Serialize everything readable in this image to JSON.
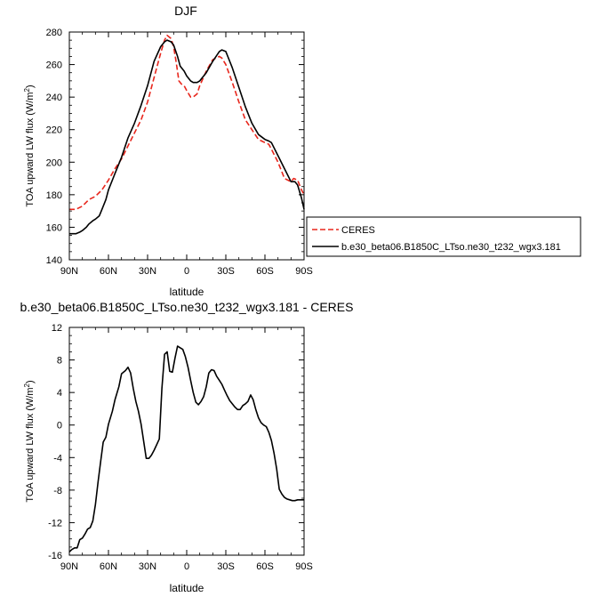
{
  "chart_data": [
    {
      "type": "line",
      "title": "DJF",
      "xlabel": "latitude",
      "ylabel": "TOA upward LW flux (W/m",
      "ylabel_sup": "2",
      "ylabel_close": ")",
      "xlim": [
        90,
        -90
      ],
      "ylim": [
        140,
        280
      ],
      "x_ticks": [
        90,
        60,
        30,
        0,
        -30,
        -60,
        -90
      ],
      "x_tick_labels": [
        "90N",
        "60N",
        "30N",
        "0",
        "30S",
        "60S",
        "90S"
      ],
      "y_ticks": [
        140,
        160,
        180,
        200,
        220,
        240,
        260,
        280
      ],
      "y_tick_labels": [
        "140",
        "160",
        "180",
        "200",
        "220",
        "240",
        "260",
        "280"
      ],
      "legend_placement": "right",
      "series": [
        {
          "name": "CERES",
          "color": "#e8261c",
          "dash": "dashed",
          "x": [
            90,
            85,
            80,
            75,
            70,
            65,
            60,
            55,
            50,
            45,
            40,
            35,
            30,
            25,
            20,
            17,
            15,
            12,
            10,
            8,
            6,
            4,
            2,
            0,
            -3,
            -5,
            -8,
            -10,
            -15,
            -20,
            -25,
            -27,
            -30,
            -35,
            -40,
            -45,
            -50,
            -55,
            -60,
            -63,
            -65,
            -70,
            -75,
            -80,
            -82,
            -85,
            -88,
            -90
          ],
          "y": [
            171,
            171,
            173,
            177,
            179,
            183,
            189,
            196,
            202,
            210,
            218,
            226,
            237,
            252,
            267,
            275,
            278,
            276,
            271,
            261,
            250,
            248,
            247,
            244,
            240,
            240,
            242,
            247,
            256,
            263,
            265,
            264,
            260,
            249,
            237,
            226,
            220,
            214,
            212,
            211,
            208,
            200,
            190,
            188,
            190,
            189,
            183,
            180
          ]
        },
        {
          "name": "b.e30_beta06.B1850C_LTso.ne30_t232_wgx3.181",
          "color": "#000000",
          "dash": "solid",
          "x": [
            90,
            87,
            85,
            82,
            80,
            77,
            75,
            72,
            70,
            67,
            65,
            62,
            60,
            55,
            50,
            45,
            40,
            35,
            30,
            25,
            20,
            17,
            15,
            12,
            10,
            7,
            5,
            2,
            0,
            -3,
            -5,
            -8,
            -10,
            -15,
            -20,
            -25,
            -27,
            -30,
            -35,
            -40,
            -45,
            -50,
            -55,
            -60,
            -63,
            -65,
            -70,
            -75,
            -80,
            -83,
            -85,
            -88,
            -90
          ],
          "y": [
            156,
            156,
            156,
            157,
            158,
            160,
            162,
            164,
            165,
            167,
            171,
            177,
            183,
            193,
            203,
            215,
            224,
            235,
            247,
            262,
            271,
            274,
            275,
            274,
            272,
            265,
            259,
            256,
            253,
            250,
            249,
            249,
            250,
            255,
            262,
            268,
            269,
            268,
            258,
            246,
            234,
            224,
            217,
            214,
            213,
            212,
            204,
            196,
            188,
            188,
            186,
            178,
            171
          ]
        }
      ]
    },
    {
      "type": "line",
      "title": "b.e30_beta06.B1850C_LTso.ne30_t232_wgx3.181 - CERES",
      "xlabel": "latitude",
      "ylabel": "TOA upward LW flux (W/m",
      "ylabel_sup": "2",
      "ylabel_close": ")",
      "xlim": [
        90,
        -90
      ],
      "ylim": [
        -16,
        12
      ],
      "x_ticks": [
        90,
        60,
        30,
        0,
        -30,
        -60,
        -90
      ],
      "x_tick_labels": [
        "90N",
        "60N",
        "30N",
        "0",
        "30S",
        "60S",
        "90S"
      ],
      "y_ticks": [
        -16,
        -12,
        -8,
        -4,
        0,
        4,
        8,
        12
      ],
      "y_tick_labels": [
        "-16",
        "-12",
        "-8",
        "-4",
        "0",
        "4",
        "8",
        "12"
      ],
      "series": [
        {
          "color": "#000000",
          "dash": "solid",
          "x": [
            90,
            88,
            86,
            84,
            82,
            80,
            78,
            76,
            74,
            72,
            70,
            68,
            66,
            64,
            62,
            60,
            57,
            55,
            52,
            50,
            47,
            45,
            43,
            41,
            39,
            37,
            35,
            33,
            31,
            29,
            27,
            25,
            23,
            21,
            19,
            17,
            15,
            13,
            11,
            9,
            7,
            5,
            3,
            1,
            -1,
            -3,
            -5,
            -7,
            -9,
            -11,
            -13,
            -15,
            -17,
            -19,
            -21,
            -23,
            -25,
            -27,
            -29,
            -31,
            -33,
            -35,
            -37,
            -39,
            -41,
            -43,
            -45,
            -47,
            -49,
            -51,
            -53,
            -55,
            -57,
            -59,
            -61,
            -63,
            -65,
            -67,
            -69,
            -71,
            -73,
            -75,
            -77,
            -79,
            -81,
            -83,
            -85,
            -87,
            -89,
            -90
          ],
          "y": [
            -15.6,
            -15.3,
            -15.1,
            -15.1,
            -14.1,
            -13.9,
            -13.4,
            -12.8,
            -12.6,
            -11.8,
            -9.8,
            -7.0,
            -4.5,
            -2.1,
            -1.5,
            0.1,
            1.7,
            3.1,
            4.7,
            6.3,
            6.7,
            7.1,
            6.4,
            4.5,
            2.9,
            1.7,
            0.1,
            -2.0,
            -4.1,
            -4.1,
            -3.7,
            -3.1,
            -2.4,
            -1.7,
            4.5,
            8.7,
            9.0,
            6.6,
            6.5,
            8.2,
            9.7,
            9.5,
            9.3,
            8.4,
            7.1,
            5.5,
            4.0,
            2.8,
            2.5,
            2.9,
            3.5,
            4.7,
            6.4,
            6.8,
            6.7,
            6.0,
            5.5,
            5.0,
            4.3,
            3.6,
            3.0,
            2.6,
            2.2,
            1.9,
            1.9,
            2.4,
            2.6,
            2.9,
            3.7,
            3.1,
            1.9,
            0.9,
            0.3,
            0.0,
            -0.2,
            -0.9,
            -1.9,
            -3.5,
            -5.4,
            -7.9,
            -8.5,
            -8.9,
            -9.1,
            -9.2,
            -9.3,
            -9.3,
            -9.2,
            -9.2,
            -9.2,
            -9.2
          ]
        }
      ]
    }
  ]
}
